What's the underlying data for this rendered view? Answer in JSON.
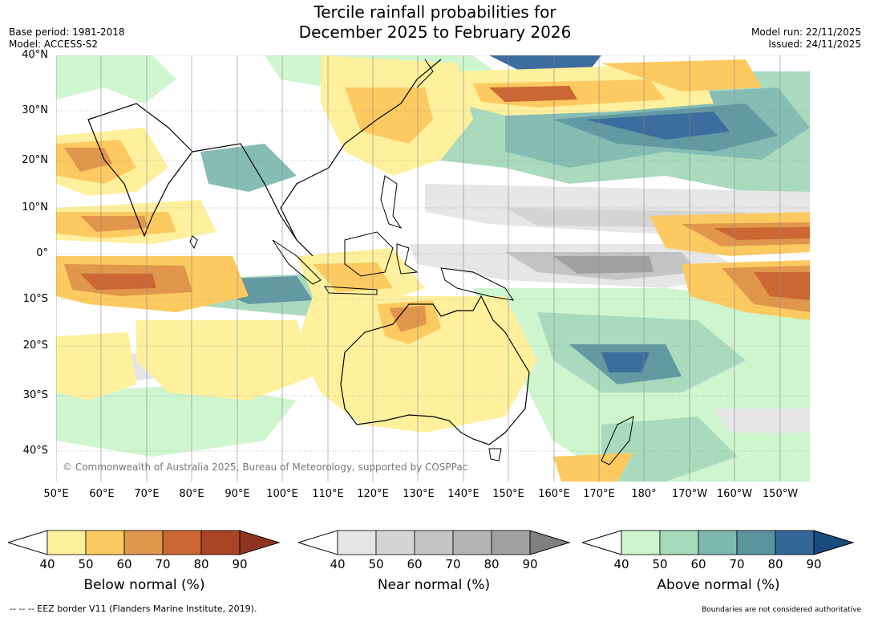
{
  "title_line1": "Tercile rainfall probabilities for",
  "title_line2": "December 2025 to February 2026",
  "base_period": "Base period: 1981-2018",
  "model": "Model: ACCESS-S2",
  "model_run": "Model run: 22/11/2025",
  "issued": "Issued: 24/11/2025",
  "copyright": "© Commonwealth of Australia 2025, Bureau of Meteorology, supported by COSPPac",
  "lat_labels": [
    "40°N",
    "30°N",
    "20°N",
    "10°N",
    "0°",
    "10°S",
    "20°S",
    "30°S",
    "40°S"
  ],
  "lon_labels": [
    "50°E",
    "60°E",
    "70°E",
    "80°E",
    "90°E",
    "100°E",
    "110°E",
    "120°E",
    "130°E",
    "140°E",
    "150°E",
    "160°E",
    "170°E",
    "180°",
    "170°W",
    "160°W",
    "150°W"
  ],
  "colorbars": [
    {
      "title": "Below normal (%)",
      "ticks": [
        "40",
        "50",
        "60",
        "70",
        "80",
        "90"
      ],
      "colors": [
        "#fff09d",
        "#fdca61",
        "#e0964b",
        "#cc6633",
        "#a84424"
      ],
      "extend": "#8f3320"
    },
    {
      "title": "Near normal (%)",
      "ticks": [
        "40",
        "50",
        "60",
        "70",
        "80",
        "90"
      ],
      "colors": [
        "#e6e6e6",
        "#d4d4d4",
        "#c4c4c4",
        "#b3b3b3",
        "#a1a1a1"
      ],
      "extend": "#808080"
    },
    {
      "title": "Above normal (%)",
      "ticks": [
        "40",
        "50",
        "60",
        "70",
        "80",
        "90"
      ],
      "colors": [
        "#ccf5cc",
        "#a6d9bb",
        "#7fb9b0",
        "#5a949f",
        "#336699"
      ],
      "extend": "#1a4a80"
    }
  ],
  "footer_left": "--  --  -- EEZ border V11 (Flanders Marine Institute, 2019).",
  "footer_right": "Boundaries are not considered authoritative"
}
